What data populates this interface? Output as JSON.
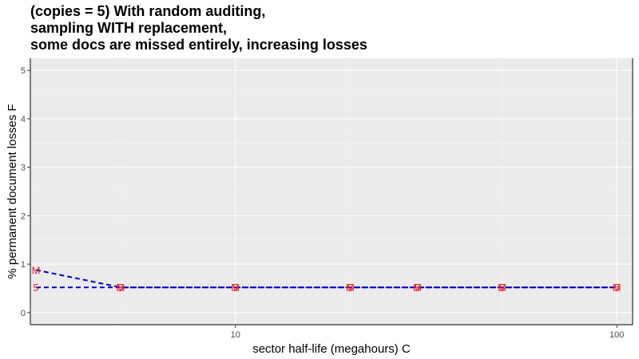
{
  "chart_data": {
    "type": "line",
    "title_lines": [
      "(copies = 5) With random auditing,",
      "sampling WITH replacement,",
      "some docs are missed entirely, increasing losses"
    ],
    "xlabel": "sector half-life (megahours) C",
    "ylabel": "% permanent document losses F",
    "x_scale": "log",
    "xlim": [
      2.9,
      110
    ],
    "ylim": [
      -0.25,
      5.25
    ],
    "x_ticks": [
      10,
      100
    ],
    "x_tick_labels": [
      "10",
      "100"
    ],
    "y_ticks": [
      0,
      1,
      2,
      3,
      4,
      5
    ],
    "y_tick_labels": [
      "0",
      "1",
      "2",
      "3",
      "4",
      "5"
    ],
    "grid": true,
    "legend": "none",
    "series": [
      {
        "marker": "M",
        "color": "#0000cc",
        "label_color": "#ee2222",
        "x": [
          3,
          5,
          10,
          20,
          30,
          50,
          100
        ],
        "y": [
          0.88,
          0.52,
          0.52,
          0.52,
          0.52,
          0.52,
          0.52
        ]
      },
      {
        "marker": "5",
        "color": "#0000cc",
        "label_color": "#ee2222",
        "x": [
          3,
          5,
          10,
          20,
          30,
          50,
          100
        ],
        "y": [
          0.52,
          0.52,
          0.52,
          0.52,
          0.52,
          0.52,
          0.52
        ]
      }
    ]
  }
}
